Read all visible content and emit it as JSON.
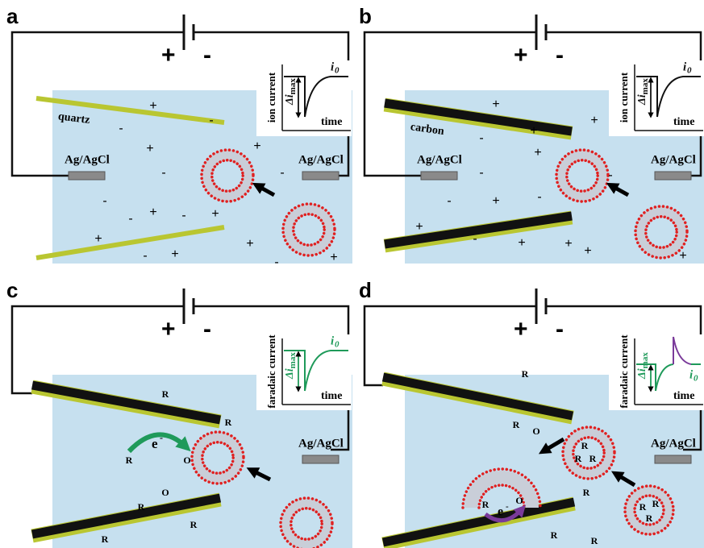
{
  "panels": [
    {
      "label": "a",
      "battery": {
        "plus": "+",
        "minus": "-"
      },
      "pipette_label": "quartz",
      "electrodes": [
        "Ag/AgCl",
        "Ag/AgCl"
      ],
      "inset": {
        "y_label": "ion current",
        "delta": "Δi",
        "delta_sub": "max",
        "x_label": "time",
        "current": "i",
        "current_sub": "0"
      },
      "symbols": [
        "+",
        "-",
        "-",
        "+",
        "-",
        "+",
        "-",
        "-",
        "+",
        "-",
        "+",
        "+",
        "-",
        "+",
        "+",
        "-",
        "+",
        "-"
      ]
    },
    {
      "label": "b",
      "battery": {
        "plus": "+",
        "minus": "-"
      },
      "pipette_label": "carbon",
      "electrodes": [
        "Ag/AgCl",
        "Ag/AgCl"
      ],
      "inset": {
        "y_label": "ion current",
        "delta": "Δi",
        "delta_sub": "max",
        "x_label": "time",
        "current": "i",
        "current_sub": "0"
      },
      "symbols": [
        "+",
        "-",
        "+",
        "+",
        "+",
        "-",
        "-",
        "+",
        "-",
        "+",
        "-",
        "+",
        "+",
        "+",
        "-",
        "+"
      ]
    },
    {
      "label": "c",
      "battery": {
        "plus": "+",
        "minus": "-"
      },
      "electrodes": [
        "Ag/AgCl"
      ],
      "inset": {
        "y_label": "faradaic current",
        "delta": "Δi",
        "delta_sub": "max",
        "x_label": "time",
        "current": "i",
        "current_sub": "0"
      },
      "electron": {
        "base": "e",
        "sup": "-"
      },
      "symbols": [
        "R",
        "R",
        "R",
        "O",
        "O",
        "R",
        "R",
        "R"
      ]
    },
    {
      "label": "d",
      "battery": {
        "plus": "+",
        "minus": "-"
      },
      "electrodes": [
        "Ag/AgCl"
      ],
      "inset": {
        "y_label": "faradaic current",
        "delta": "Δi",
        "delta_sub": "max",
        "x_label": "time",
        "current": "i",
        "current_sub": "0"
      },
      "electron": {
        "base": "e",
        "sup": "-"
      },
      "symbols": [
        "R",
        "R",
        "O",
        "R",
        "O",
        "R",
        "R",
        "R",
        "R",
        "R",
        "R",
        "R",
        "R",
        "R"
      ]
    }
  ]
}
